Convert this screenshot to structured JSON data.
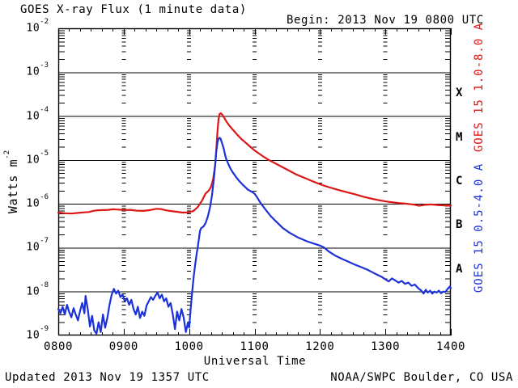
{
  "chart_data": {
    "type": "line",
    "title": "GOES X-ray Flux (1 minute data)",
    "begin_label": "Begin: 2013 Nov 19 0800 UTC",
    "xlabel": "Universal Time",
    "ylabel_parts": {
      "base": "Watts m",
      "exp": "-2"
    },
    "x_ticks": [
      "0800",
      "0900",
      "1000",
      "1100",
      "1200",
      "1300",
      "1400"
    ],
    "x_range_minutes": [
      480,
      840
    ],
    "x_minor_step_minutes": 10,
    "y_tick_exponents": [
      -2,
      -3,
      -4,
      -5,
      -6,
      -7,
      -8,
      -9
    ],
    "y_unit": "Watts m^-2",
    "grid": "solid horizontal decade lines, dashed vertical hour lines at log-minor positions",
    "legend_position": "right-side rotated labels",
    "flare_classes": [
      {
        "label": "X",
        "log_center": -3.5
      },
      {
        "label": "M",
        "log_center": -4.5
      },
      {
        "label": "C",
        "log_center": -5.5
      },
      {
        "label": "B",
        "log_center": -6.5
      },
      {
        "label": "A",
        "log_center": -7.5
      }
    ],
    "right_labels": [
      {
        "text": "GOES 15 1.0-8.0 A",
        "color": "#dd1616",
        "center_y_log": -3.35
      },
      {
        "text": "GOES 15 0.5-4.0 A",
        "color": "#1c32d8",
        "center_y_log": -6.55
      }
    ],
    "colors": {
      "long_channel": "#dd1616",
      "short_channel": "#1c32d8",
      "axis": "#000000",
      "background": "#ffffff"
    },
    "footer": {
      "updated": "Updated 2013 Nov 19 1357 UTC",
      "credit": "NOAA/SWPC Boulder, CO USA"
    },
    "series": [
      {
        "name": "GOES 15 1.0-8.0 A",
        "color_key": "long_channel",
        "points": [
          [
            480,
            6.3e-07
          ],
          [
            486,
            6.1e-07
          ],
          [
            492,
            6e-07
          ],
          [
            498,
            6.2e-07
          ],
          [
            504,
            6.4e-07
          ],
          [
            508,
            6.5e-07
          ],
          [
            512,
            6.9e-07
          ],
          [
            516,
            7.1e-07
          ],
          [
            520,
            7.2e-07
          ],
          [
            526,
            7.3e-07
          ],
          [
            530,
            7.5e-07
          ],
          [
            534,
            7.4e-07
          ],
          [
            540,
            7.2e-07
          ],
          [
            546,
            7.3e-07
          ],
          [
            552,
            7e-07
          ],
          [
            558,
            6.9e-07
          ],
          [
            564,
            7.2e-07
          ],
          [
            570,
            7.7e-07
          ],
          [
            574,
            7.6e-07
          ],
          [
            578,
            7.2e-07
          ],
          [
            582,
            6.9e-07
          ],
          [
            588,
            6.6e-07
          ],
          [
            594,
            6.3e-07
          ],
          [
            600,
            6.4e-07
          ],
          [
            604,
            6.9e-07
          ],
          [
            608,
            8.5e-07
          ],
          [
            612,
            1.2e-06
          ],
          [
            615,
            1.7e-06
          ],
          [
            618,
            2e-06
          ],
          [
            620,
            2.4e-06
          ],
          [
            622,
            3.6e-06
          ],
          [
            624,
            8e-06
          ],
          [
            625,
            1.8e-05
          ],
          [
            626,
            4.5e-05
          ],
          [
            627,
            8.5e-05
          ],
          [
            628,
            0.000112
          ],
          [
            629,
            0.000116
          ],
          [
            630,
            0.00011
          ],
          [
            632,
            9.3e-05
          ],
          [
            634,
            7.6e-05
          ],
          [
            637,
            6e-05
          ],
          [
            640,
            4.9e-05
          ],
          [
            644,
            3.8e-05
          ],
          [
            648,
            3e-05
          ],
          [
            652,
            2.45e-05
          ],
          [
            656,
            2e-05
          ],
          [
            660,
            1.65e-05
          ],
          [
            664,
            1.4e-05
          ],
          [
            668,
            1.2e-05
          ],
          [
            673,
            1e-05
          ],
          [
            678,
            8.6e-06
          ],
          [
            684,
            7.2e-06
          ],
          [
            690,
            6e-06
          ],
          [
            698,
            4.7e-06
          ],
          [
            706,
            3.9e-06
          ],
          [
            714,
            3.2e-06
          ],
          [
            720,
            2.8e-06
          ],
          [
            728,
            2.4e-06
          ],
          [
            736,
            2.1e-06
          ],
          [
            744,
            1.85e-06
          ],
          [
            752,
            1.65e-06
          ],
          [
            760,
            1.45e-06
          ],
          [
            768,
            1.3e-06
          ],
          [
            776,
            1.18e-06
          ],
          [
            784,
            1.1e-06
          ],
          [
            792,
            1.04e-06
          ],
          [
            800,
            1e-06
          ],
          [
            806,
            9.6e-07
          ],
          [
            811,
            9e-07
          ],
          [
            816,
            9.5e-07
          ],
          [
            822,
            9.7e-07
          ],
          [
            828,
            9.4e-07
          ],
          [
            834,
            9.2e-07
          ],
          [
            840,
            9.1e-07
          ]
        ]
      },
      {
        "name": "GOES 15 0.5-4.0 A",
        "color_key": "short_channel",
        "points": [
          [
            480,
            4e-09
          ],
          [
            482,
            3.2e-09
          ],
          [
            484,
            4.5e-09
          ],
          [
            486,
            3e-09
          ],
          [
            488,
            5e-09
          ],
          [
            490,
            3.4e-09
          ],
          [
            492,
            2.6e-09
          ],
          [
            494,
            4.2e-09
          ],
          [
            496,
            3e-09
          ],
          [
            498,
            2.2e-09
          ],
          [
            500,
            3.6e-09
          ],
          [
            502,
            5.5e-09
          ],
          [
            504,
            3.2e-09
          ],
          [
            505,
            8e-09
          ],
          [
            507,
            4e-09
          ],
          [
            509,
            1.6e-09
          ],
          [
            511,
            2.8e-09
          ],
          [
            513,
            1.3e-09
          ],
          [
            515,
            1.1e-09
          ],
          [
            517,
            2e-09
          ],
          [
            519,
            1.2e-09
          ],
          [
            521,
            3e-09
          ],
          [
            523,
            1.5e-09
          ],
          [
            525,
            2.5e-09
          ],
          [
            527,
            5e-09
          ],
          [
            529,
            8.5e-09
          ],
          [
            531,
            1.15e-08
          ],
          [
            533,
            9e-09
          ],
          [
            535,
            1.05e-08
          ],
          [
            537,
            7.5e-09
          ],
          [
            539,
            8.5e-09
          ],
          [
            541,
            6e-09
          ],
          [
            543,
            7e-09
          ],
          [
            545,
            5e-09
          ],
          [
            547,
            6.5e-09
          ],
          [
            549,
            4e-09
          ],
          [
            551,
            3e-09
          ],
          [
            553,
            4.5e-09
          ],
          [
            555,
            2.5e-09
          ],
          [
            557,
            3.5e-09
          ],
          [
            559,
            2.8e-09
          ],
          [
            561,
            4.8e-09
          ],
          [
            563,
            6e-09
          ],
          [
            565,
            7.5e-09
          ],
          [
            567,
            6.5e-09
          ],
          [
            569,
            8e-09
          ],
          [
            571,
            9.5e-09
          ],
          [
            573,
            7e-09
          ],
          [
            575,
            8.5e-09
          ],
          [
            577,
            6e-09
          ],
          [
            579,
            7e-09
          ],
          [
            581,
            4.5e-09
          ],
          [
            583,
            5.5e-09
          ],
          [
            585,
            3e-09
          ],
          [
            587,
            1.4e-09
          ],
          [
            589,
            3.5e-09
          ],
          [
            591,
            2.2e-09
          ],
          [
            593,
            4e-09
          ],
          [
            595,
            2.6e-09
          ],
          [
            597,
            1.2e-09
          ],
          [
            599,
            2e-09
          ],
          [
            600,
            1.5e-09
          ],
          [
            601,
            3e-09
          ],
          [
            602,
            6e-09
          ],
          [
            603,
            1.1e-08
          ],
          [
            604,
            2e-08
          ],
          [
            605,
            3.2e-08
          ],
          [
            606,
            5e-08
          ],
          [
            607,
            7.5e-08
          ],
          [
            608,
            1.05e-07
          ],
          [
            609,
            1.6e-07
          ],
          [
            610,
            2.4e-07
          ],
          [
            611,
            2.8e-07
          ],
          [
            613,
            3e-07
          ],
          [
            615,
            3.6e-07
          ],
          [
            617,
            5e-07
          ],
          [
            619,
            8e-07
          ],
          [
            620,
            1.1e-06
          ],
          [
            621,
            1.6e-06
          ],
          [
            622,
            2.6e-06
          ],
          [
            623,
            4.5e-06
          ],
          [
            624,
            8.5e-06
          ],
          [
            625,
            1.6e-05
          ],
          [
            626,
            2.5e-05
          ],
          [
            627,
            3.05e-05
          ],
          [
            628,
            3.2e-05
          ],
          [
            629,
            3e-05
          ],
          [
            630,
            2.5e-05
          ],
          [
            631,
            2.1e-05
          ],
          [
            632,
            1.7e-05
          ],
          [
            633,
            1.3e-05
          ],
          [
            634,
            1.05e-05
          ],
          [
            636,
            8e-06
          ],
          [
            638,
            6.3e-06
          ],
          [
            640,
            5.2e-06
          ],
          [
            643,
            4.1e-06
          ],
          [
            646,
            3.3e-06
          ],
          [
            650,
            2.6e-06
          ],
          [
            654,
            2.1e-06
          ],
          [
            658,
            1.85e-06
          ],
          [
            660,
            1.7e-06
          ],
          [
            662,
            1.45e-06
          ],
          [
            664,
            1.2e-06
          ],
          [
            666,
            1e-06
          ],
          [
            670,
            7.4e-07
          ],
          [
            675,
            5.2e-07
          ],
          [
            680,
            3.9e-07
          ],
          [
            686,
            2.8e-07
          ],
          [
            692,
            2.2e-07
          ],
          [
            700,
            1.7e-07
          ],
          [
            708,
            1.4e-07
          ],
          [
            716,
            1.2e-07
          ],
          [
            720,
            1.12e-07
          ],
          [
            724,
            1e-07
          ],
          [
            728,
            8.2e-08
          ],
          [
            734,
            6.6e-08
          ],
          [
            740,
            5.6e-08
          ],
          [
            746,
            4.8e-08
          ],
          [
            752,
            4.1e-08
          ],
          [
            758,
            3.6e-08
          ],
          [
            764,
            3.1e-08
          ],
          [
            770,
            2.6e-08
          ],
          [
            776,
            2.2e-08
          ],
          [
            780,
            1.9e-08
          ],
          [
            783,
            1.7e-08
          ],
          [
            786,
            2e-08
          ],
          [
            789,
            1.8e-08
          ],
          [
            792,
            1.6e-08
          ],
          [
            795,
            1.75e-08
          ],
          [
            798,
            1.5e-08
          ],
          [
            801,
            1.6e-08
          ],
          [
            804,
            1.35e-08
          ],
          [
            807,
            1.45e-08
          ],
          [
            810,
            1.2e-08
          ],
          [
            813,
            1.05e-08
          ],
          [
            815,
            9e-09
          ],
          [
            817,
            1.1e-08
          ],
          [
            819,
            9.5e-09
          ],
          [
            821,
            1.05e-08
          ],
          [
            823,
            9e-09
          ],
          [
            825,
            1e-08
          ],
          [
            827,
            9.5e-09
          ],
          [
            829,
            1.05e-08
          ],
          [
            831,
            9.2e-09
          ],
          [
            833,
            1e-08
          ],
          [
            835,
            9.8e-09
          ],
          [
            837,
            1.15e-08
          ],
          [
            839,
            1.3e-08
          ],
          [
            840,
            1.2e-08
          ]
        ]
      }
    ]
  }
}
